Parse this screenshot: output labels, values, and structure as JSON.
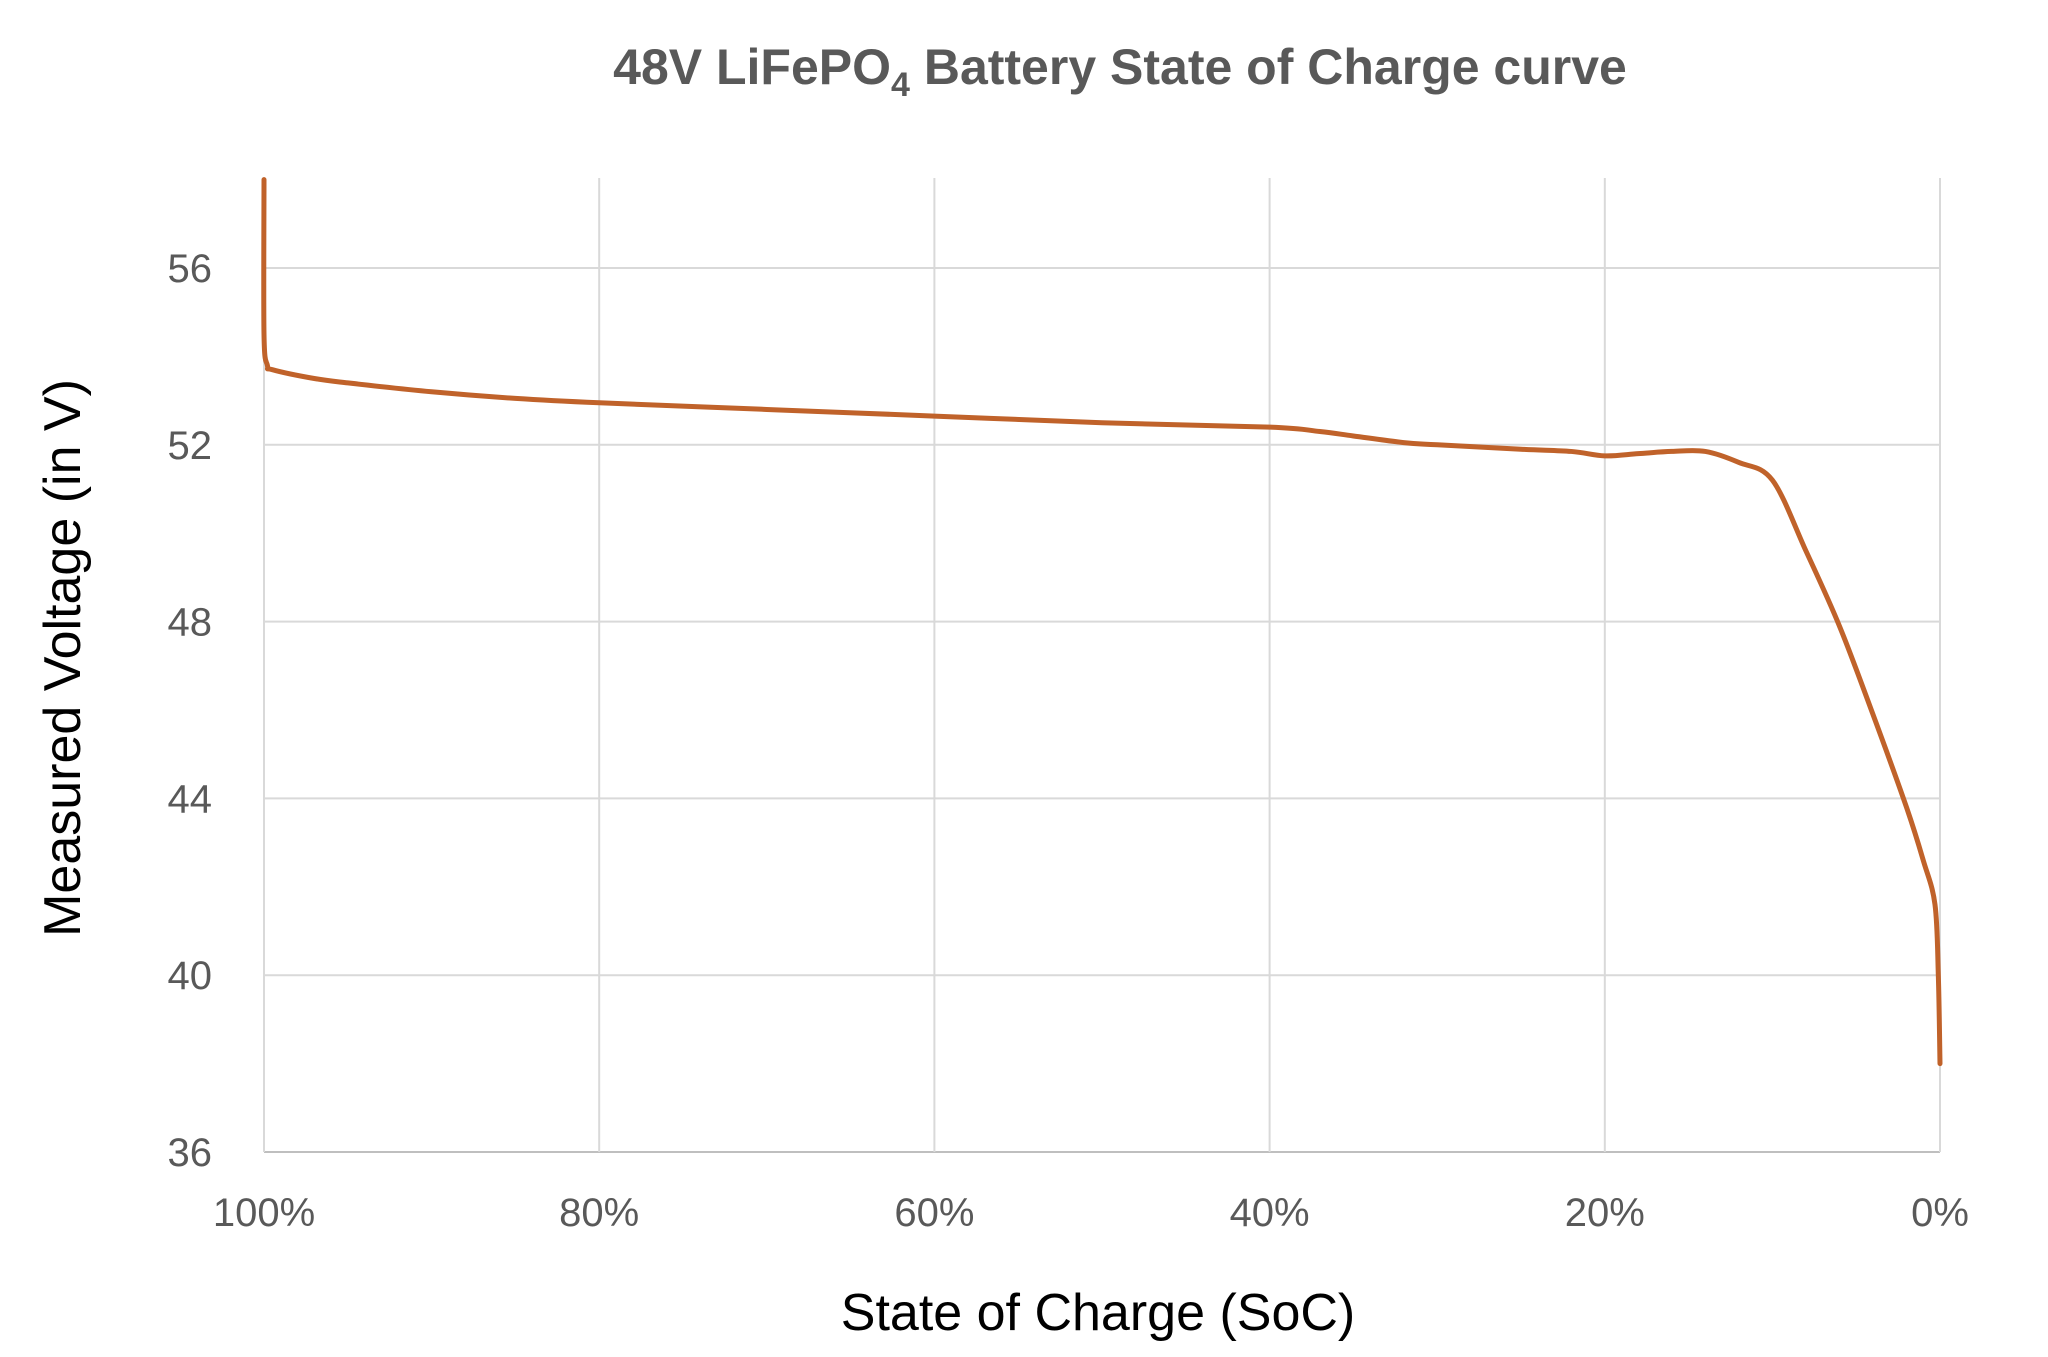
{
  "chart_data": {
    "type": "line",
    "title": "48V LiFePO",
    "title_subscript": "4",
    "title_rest": " Battery State of Charge curve",
    "xlabel": "State of Charge (SoC)",
    "ylabel": "Measured Voltage (in V)",
    "x_reversed": true,
    "xlim": [
      100,
      0
    ],
    "ylim": [
      36,
      58
    ],
    "x_ticks": [
      100,
      80,
      60,
      40,
      20,
      0
    ],
    "x_tick_labels": [
      "100%",
      "80%",
      "60%",
      "40%",
      "20%",
      "0%"
    ],
    "y_ticks": [
      36,
      40,
      44,
      48,
      52,
      56
    ],
    "y_tick_labels": [
      "36",
      "40",
      "44",
      "48",
      "52",
      "56"
    ],
    "grid": true,
    "legend": "none",
    "line_color": "#c0622a",
    "series": [
      {
        "x": [
          100,
          100,
          99.8,
          99.5,
          97,
          95,
          90,
          85,
          80,
          70,
          60,
          50,
          40,
          37,
          35,
          32,
          30,
          25,
          22,
          20,
          18,
          16,
          14,
          12,
          10,
          8,
          6,
          4,
          2,
          1,
          0.3,
          0.1,
          0
        ],
        "y": [
          58,
          54.5,
          53.8,
          53.7,
          53.5,
          53.4,
          53.2,
          53.05,
          52.95,
          52.8,
          52.65,
          52.5,
          52.4,
          52.3,
          52.2,
          52.05,
          52.0,
          51.9,
          51.85,
          51.75,
          51.8,
          51.85,
          51.85,
          51.6,
          51.2,
          49.6,
          47.9,
          45.9,
          43.8,
          42.6,
          41.6,
          40,
          38
        ]
      }
    ]
  }
}
